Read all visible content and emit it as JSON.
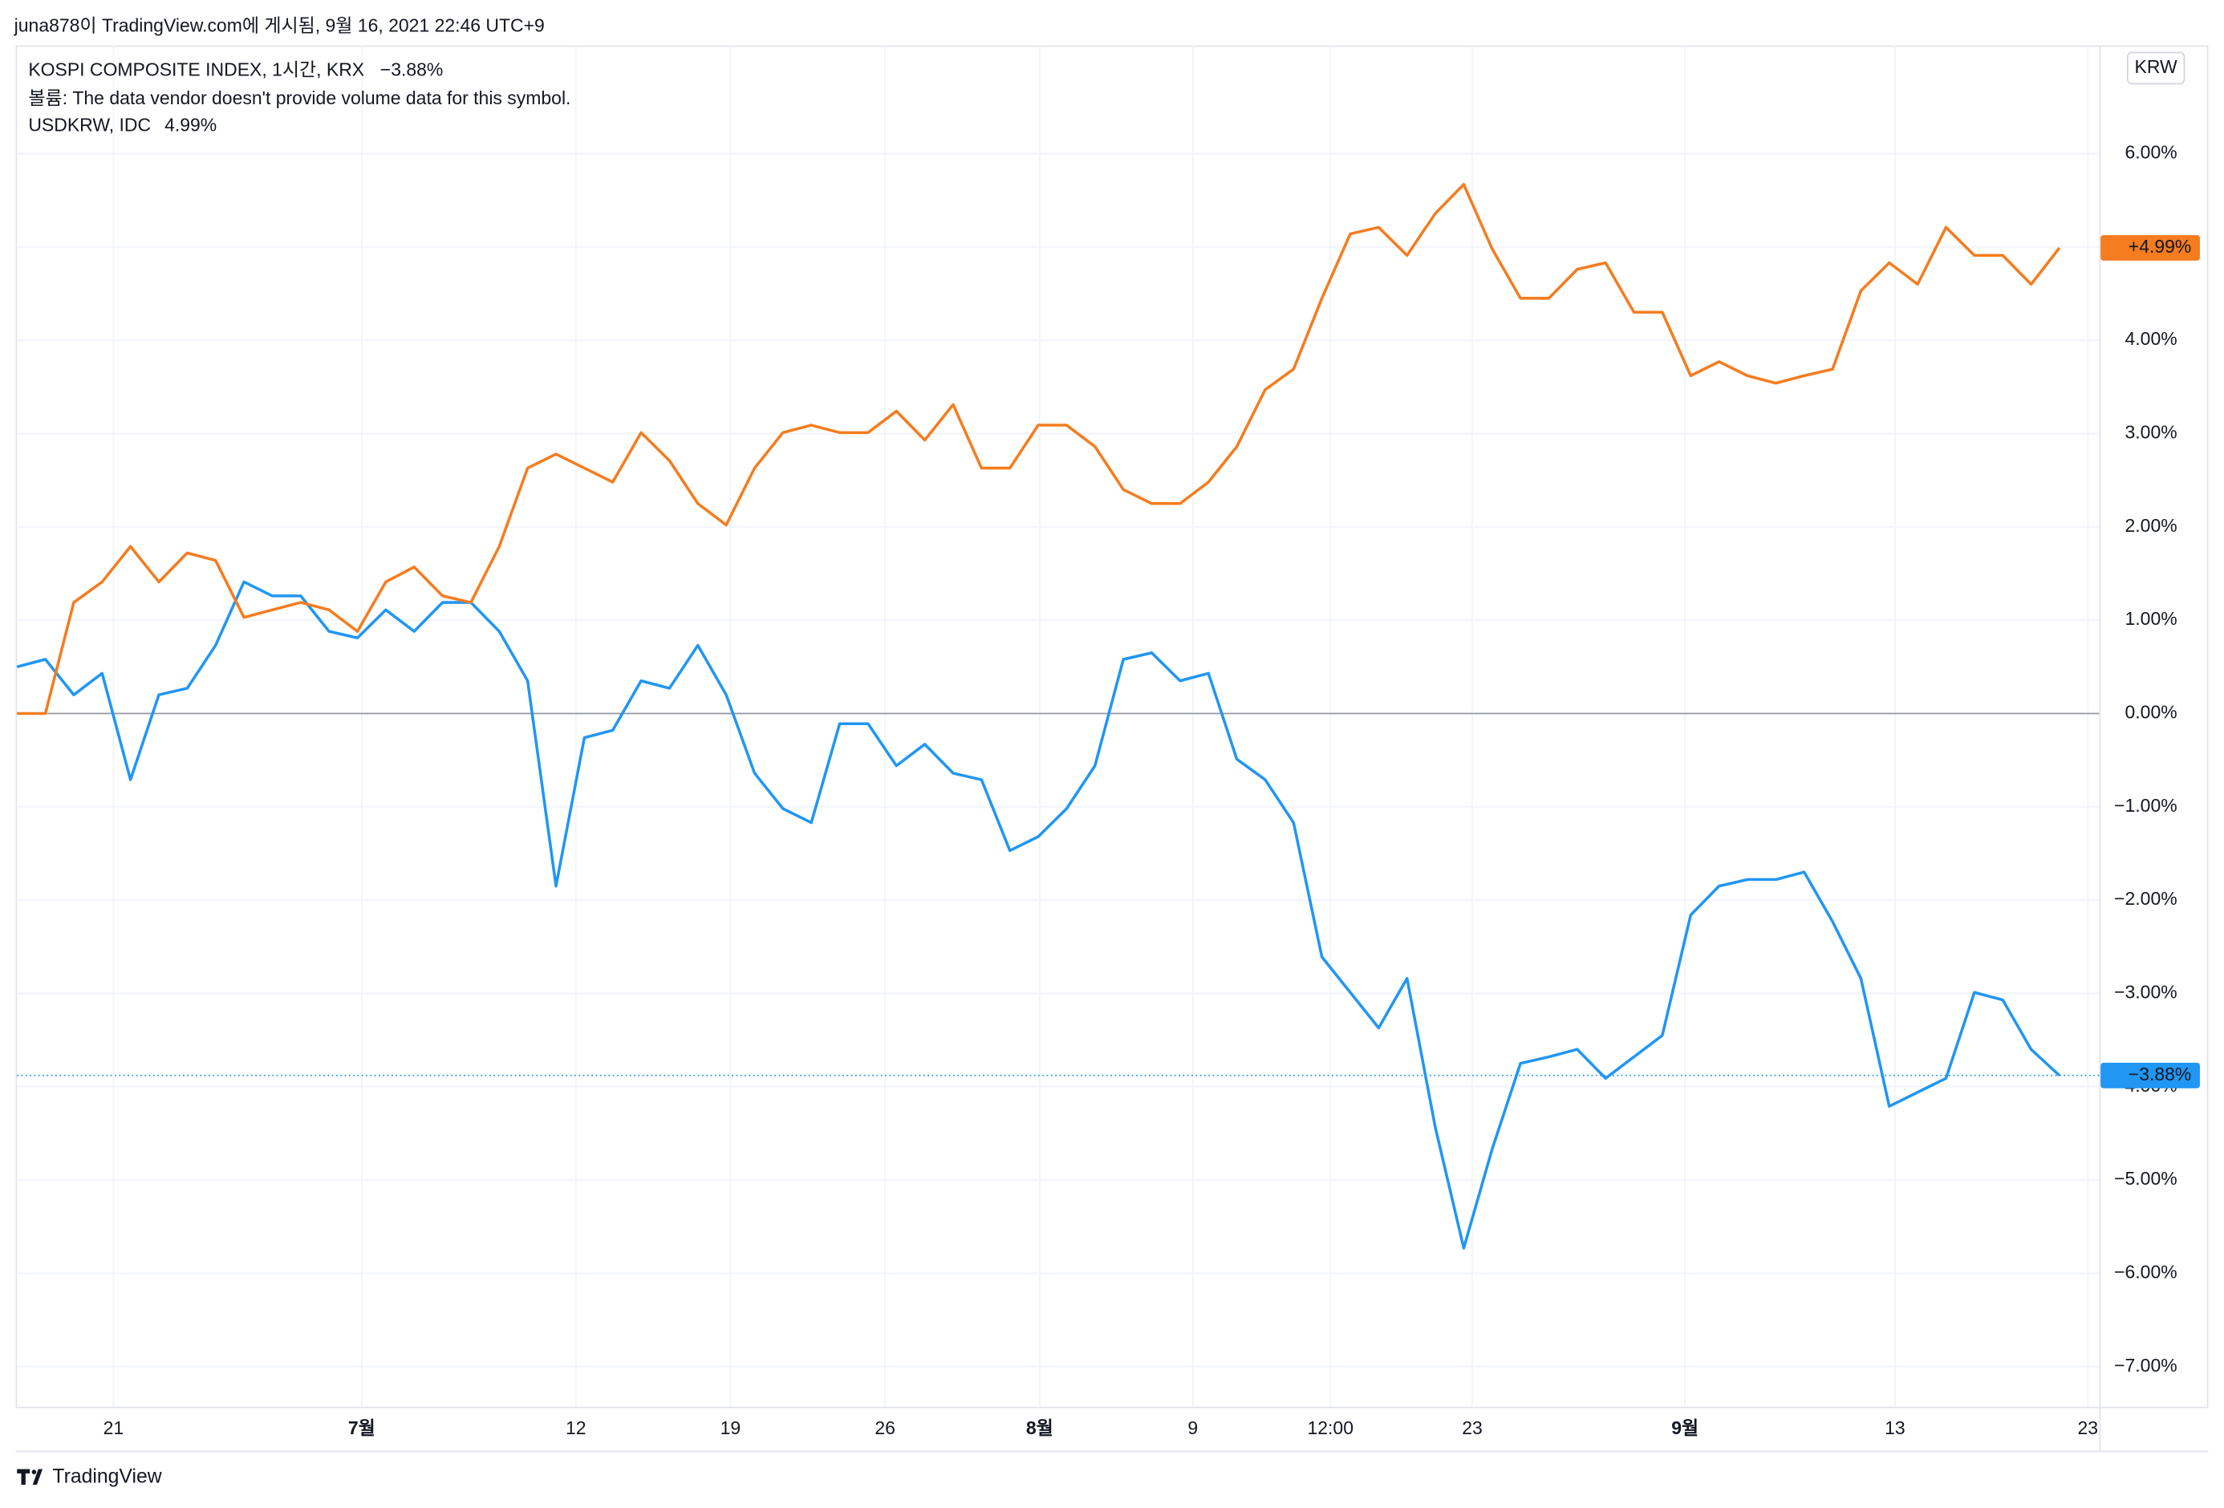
{
  "chart_data": {
    "type": "line",
    "attribution": "juna878이 TradingView.com에 게시됨, 9월 16, 2021 22:46 UTC+9",
    "volume_note": "볼륨: The data vendor doesn't provide volume data for this symbol.",
    "currency": "KRW",
    "brand": "TradingView",
    "x": [
      0,
      1,
      2,
      3,
      4,
      5,
      6,
      7,
      8,
      9,
      10,
      11,
      12,
      13,
      14,
      15,
      16,
      17,
      18,
      19,
      20,
      21,
      22,
      23,
      24,
      25,
      26,
      27,
      28,
      29,
      30,
      31,
      32,
      33,
      34,
      35,
      36,
      37,
      38,
      39,
      40,
      41,
      42,
      43,
      44,
      45,
      46,
      47,
      48,
      49,
      50,
      51,
      52,
      53,
      54,
      55,
      56,
      57,
      58,
      59,
      60,
      61,
      62,
      63,
      64,
      65,
      66,
      67,
      68,
      69,
      70,
      71,
      72
    ],
    "xlim": [
      0,
      73.4
    ],
    "xticks": [
      {
        "value": 3.4,
        "label": "21"
      },
      {
        "value": 12.15,
        "label": "7월"
      },
      {
        "value": 19.7,
        "label": "12"
      },
      {
        "value": 25.15,
        "label": "19"
      },
      {
        "value": 30.6,
        "label": "26"
      },
      {
        "value": 36.05,
        "label": "8월"
      },
      {
        "value": 41.45,
        "label": "9"
      },
      {
        "value": 46.3,
        "label": "12:00"
      },
      {
        "value": 51.3,
        "label": "23"
      },
      {
        "value": 58.8,
        "label": "9월"
      },
      {
        "value": 66.2,
        "label": "13"
      },
      {
        "value": 73,
        "label": "23"
      }
    ],
    "ylim": [
      -7.43,
      7.16
    ],
    "yticks": [
      {
        "value": 6,
        "label": "6.00%"
      },
      {
        "value": 5,
        "label": "5.00%"
      },
      {
        "value": 4,
        "label": "4.00%"
      },
      {
        "value": 3,
        "label": "3.00%"
      },
      {
        "value": 2,
        "label": "2.00%"
      },
      {
        "value": 1,
        "label": "1.00%"
      },
      {
        "value": 0,
        "label": "0.00%"
      },
      {
        "value": -1,
        "label": "−1.00%"
      },
      {
        "value": -2,
        "label": "−2.00%"
      },
      {
        "value": -3,
        "label": "−3.00%"
      },
      {
        "value": -4,
        "label": "−4.00%"
      },
      {
        "value": -5,
        "label": "−5.00%"
      },
      {
        "value": -6,
        "label": "−6.00%"
      },
      {
        "value": -7,
        "label": "−7.00%"
      }
    ],
    "grid": true,
    "series": [
      {
        "name": "KOSPI COMPOSITE INDEX, 1시간, KRX",
        "color": "#2196f3",
        "legend_label": "−3.88%",
        "axis_label": "−3.88%",
        "values": [
          0.5,
          0.58,
          0.2,
          0.43,
          -0.71,
          0.2,
          0.27,
          0.73,
          1.41,
          1.26,
          1.26,
          0.88,
          0.81,
          1.11,
          0.88,
          1.19,
          1.19,
          0.88,
          0.35,
          -1.85,
          -0.26,
          -0.18,
          0.35,
          0.27,
          0.73,
          0.2,
          -0.64,
          -1.02,
          -1.17,
          -0.11,
          -0.11,
          -0.56,
          -0.33,
          -0.64,
          -0.71,
          -1.47,
          -1.32,
          -1.02,
          -0.56,
          0.58,
          0.65,
          0.35,
          0.43,
          -0.49,
          -0.71,
          -1.17,
          -2.61,
          -2.99,
          -3.37,
          -2.84,
          -4.44,
          -5.73,
          -4.67,
          -3.75,
          -3.68,
          -3.6,
          -3.91,
          -3.68,
          -3.45,
          -2.16,
          -1.85,
          -1.78,
          -1.78,
          -1.7,
          -2.23,
          -2.84,
          -4.21,
          -4.06,
          -3.91,
          -2.99,
          -3.07,
          -3.6,
          -3.88
        ]
      },
      {
        "name": "USDKRW, IDC",
        "color": "#f57c1f",
        "legend_label": "4.99%",
        "axis_label": "+4.99%",
        "values": [
          0,
          0,
          1.19,
          1.41,
          1.79,
          1.41,
          1.72,
          1.64,
          1.03,
          1.11,
          1.19,
          1.11,
          0.88,
          1.41,
          1.57,
          1.26,
          1.19,
          1.79,
          2.63,
          2.78,
          2.63,
          2.48,
          3.01,
          2.71,
          2.25,
          2.02,
          2.63,
          3.01,
          3.09,
          3.01,
          3.01,
          3.24,
          2.93,
          3.31,
          2.63,
          2.63,
          3.09,
          3.09,
          2.86,
          2.4,
          2.25,
          2.25,
          2.48,
          2.86,
          3.47,
          3.69,
          4.45,
          5.14,
          5.21,
          4.91,
          5.36,
          5.67,
          4.98,
          4.45,
          4.45,
          4.76,
          4.83,
          4.3,
          4.3,
          3.62,
          3.77,
          3.62,
          3.54,
          3.62,
          3.69,
          4.53,
          4.83,
          4.6,
          5.21,
          4.91,
          4.91,
          4.6,
          4.99
        ]
      }
    ]
  }
}
